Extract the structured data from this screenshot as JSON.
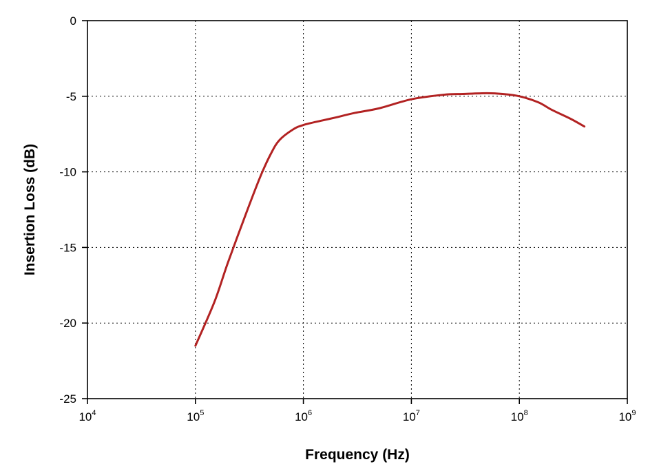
{
  "chart_data": {
    "type": "line",
    "title": "",
    "xlabel": "Frequency (Hz)",
    "ylabel": "Insertion Loss (dB)",
    "x_scale": "log",
    "xlim": [
      10000,
      1000000000
    ],
    "ylim": [
      -25,
      0
    ],
    "x_ticks": [
      {
        "base": "10",
        "exp": "4",
        "value": 10000
      },
      {
        "base": "10",
        "exp": "5",
        "value": 100000
      },
      {
        "base": "10",
        "exp": "6",
        "value": 1000000
      },
      {
        "base": "10",
        "exp": "7",
        "value": 10000000
      },
      {
        "base": "10",
        "exp": "8",
        "value": 100000000
      },
      {
        "base": "10",
        "exp": "9",
        "value": 1000000000
      }
    ],
    "y_ticks": [
      {
        "label": "0",
        "value": 0
      },
      {
        "label": "-5",
        "value": -5
      },
      {
        "label": "-10",
        "value": -10
      },
      {
        "label": "-15",
        "value": -15
      },
      {
        "label": "-20",
        "value": -20
      },
      {
        "label": "-25",
        "value": -25
      }
    ],
    "grid": true,
    "grid_style": "dotted",
    "series": [
      {
        "color": "#b22222",
        "x": [
          100000,
          150000,
          200000,
          300000,
          400000,
          500000,
          600000,
          800000,
          1000000,
          1500000,
          2000000,
          3000000,
          5000000,
          10000000,
          20000000,
          30000000,
          50000000,
          70000000,
          100000000,
          150000000,
          200000000,
          300000000,
          400000000
        ],
        "y": [
          -21.5,
          -18.6,
          -16.0,
          -12.6,
          -10.3,
          -8.8,
          -7.9,
          -7.2,
          -6.9,
          -6.6,
          -6.4,
          -6.1,
          -5.8,
          -5.2,
          -4.9,
          -4.85,
          -4.8,
          -4.85,
          -5.0,
          -5.4,
          -5.9,
          -6.5,
          -7.0
        ]
      }
    ]
  }
}
